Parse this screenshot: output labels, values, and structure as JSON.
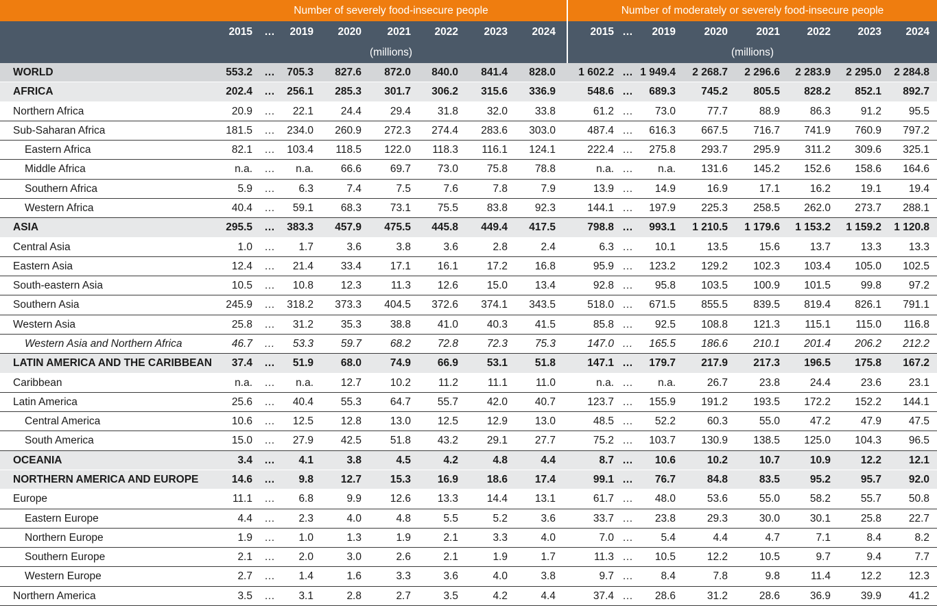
{
  "table": {
    "header": {
      "groups": [
        "Number of severely food-insecure people",
        "Number of moderately or severely food-insecure people"
      ],
      "years": [
        [
          "2015",
          "…",
          "2019",
          "2020",
          "2021",
          "2022",
          "2023",
          "2024"
        ],
        [
          "2015",
          "…",
          "2019",
          "2020",
          "2021",
          "2022",
          "2023",
          "2024"
        ]
      ],
      "units": [
        "(millions)",
        "(millions)"
      ]
    },
    "rows": [
      [
        "WORLD",
        "553.2",
        "…",
        "705.3",
        "827.6",
        "872.0",
        "840.0",
        "841.4",
        "828.0",
        "1 602.2",
        "…",
        "1 949.4",
        "2 268.7",
        "2 296.6",
        "2 283.9",
        "2 295.0",
        "2 284.8"
      ],
      [
        "AFRICA",
        "202.4",
        "…",
        "256.1",
        "285.3",
        "301.7",
        "306.2",
        "315.6",
        "336.9",
        "548.6",
        "…",
        "689.3",
        "745.2",
        "805.5",
        "828.2",
        "852.1",
        "892.7"
      ],
      [
        "Northern Africa",
        "20.9",
        "…",
        "22.1",
        "24.4",
        "29.4",
        "31.8",
        "32.0",
        "33.8",
        "61.2",
        "…",
        "73.0",
        "77.7",
        "88.9",
        "86.3",
        "91.2",
        "95.5"
      ],
      [
        "Sub-Saharan Africa",
        "181.5",
        "…",
        "234.0",
        "260.9",
        "272.3",
        "274.4",
        "283.6",
        "303.0",
        "487.4",
        "…",
        "616.3",
        "667.5",
        "716.7",
        "741.9",
        "760.9",
        "797.2"
      ],
      [
        "Eastern Africa",
        "82.1",
        "…",
        "103.4",
        "118.5",
        "122.0",
        "118.3",
        "116.1",
        "124.1",
        "222.4",
        "…",
        "275.8",
        "293.7",
        "295.9",
        "311.2",
        "309.6",
        "325.1"
      ],
      [
        "Middle Africa",
        "n.a.",
        "…",
        "n.a.",
        "66.6",
        "69.7",
        "73.0",
        "75.8",
        "78.8",
        "n.a.",
        "…",
        "n.a.",
        "131.6",
        "145.2",
        "152.6",
        "158.6",
        "164.6"
      ],
      [
        "Southern Africa",
        "5.9",
        "…",
        "6.3",
        "7.4",
        "7.5",
        "7.6",
        "7.8",
        "7.9",
        "13.9",
        "…",
        "14.9",
        "16.9",
        "17.1",
        "16.2",
        "19.1",
        "19.4"
      ],
      [
        "Western Africa",
        "40.4",
        "…",
        "59.1",
        "68.3",
        "73.1",
        "75.5",
        "83.8",
        "92.3",
        "144.1",
        "…",
        "197.9",
        "225.3",
        "258.5",
        "262.0",
        "273.7",
        "288.1"
      ],
      [
        "ASIA",
        "295.5",
        "…",
        "383.3",
        "457.9",
        "475.5",
        "445.8",
        "449.4",
        "417.5",
        "798.8",
        "…",
        "993.1",
        "1 210.5",
        "1 179.6",
        "1 153.2",
        "1 159.2",
        "1 120.8"
      ],
      [
        "Central Asia",
        "1.0",
        "…",
        "1.7",
        "3.6",
        "3.8",
        "3.6",
        "2.8",
        "2.4",
        "6.3",
        "…",
        "10.1",
        "13.5",
        "15.6",
        "13.7",
        "13.3",
        "13.3"
      ],
      [
        "Eastern Asia",
        "12.4",
        "…",
        "21.4",
        "33.4",
        "17.1",
        "16.1",
        "17.2",
        "16.8",
        "95.9",
        "…",
        "123.2",
        "129.2",
        "102.3",
        "103.4",
        "105.0",
        "102.5"
      ],
      [
        "South-eastern Asia",
        "10.5",
        "…",
        "10.8",
        "12.3",
        "11.3",
        "12.6",
        "15.0",
        "13.4",
        "92.8",
        "…",
        "95.8",
        "103.5",
        "100.9",
        "101.5",
        "99.8",
        "97.2"
      ],
      [
        "Southern Asia",
        "245.9",
        "…",
        "318.2",
        "373.3",
        "404.5",
        "372.6",
        "374.1",
        "343.5",
        "518.0",
        "…",
        "671.5",
        "855.5",
        "839.5",
        "819.4",
        "826.1",
        "791.1"
      ],
      [
        "Western Asia",
        "25.8",
        "…",
        "31.2",
        "35.3",
        "38.8",
        "41.0",
        "40.3",
        "41.5",
        "85.8",
        "…",
        "92.5",
        "108.8",
        "121.3",
        "115.1",
        "115.0",
        "116.8"
      ],
      [
        "Western Asia and Northern Africa",
        "46.7",
        "…",
        "53.3",
        "59.7",
        "68.2",
        "72.8",
        "72.3",
        "75.3",
        "147.0",
        "…",
        "165.5",
        "186.6",
        "210.1",
        "201.4",
        "206.2",
        "212.2"
      ],
      [
        "LATIN AMERICA AND THE CARIBBEAN",
        "37.4",
        "…",
        "51.9",
        "68.0",
        "74.9",
        "66.9",
        "53.1",
        "51.8",
        "147.1",
        "…",
        "179.7",
        "217.9",
        "217.3",
        "196.5",
        "175.8",
        "167.2"
      ],
      [
        "Caribbean",
        "n.a.",
        "…",
        "n.a.",
        "12.7",
        "10.2",
        "11.2",
        "11.1",
        "11.0",
        "n.a.",
        "…",
        "n.a.",
        "26.7",
        "23.8",
        "24.4",
        "23.6",
        "23.1"
      ],
      [
        "Latin America",
        "25.6",
        "…",
        "40.4",
        "55.3",
        "64.7",
        "55.7",
        "42.0",
        "40.7",
        "123.7",
        "…",
        "155.9",
        "191.2",
        "193.5",
        "172.2",
        "152.2",
        "144.1"
      ],
      [
        "Central America",
        "10.6",
        "…",
        "12.5",
        "12.8",
        "13.0",
        "12.5",
        "12.9",
        "13.0",
        "48.5",
        "…",
        "52.2",
        "60.3",
        "55.0",
        "47.2",
        "47.9",
        "47.5"
      ],
      [
        "South America",
        "15.0",
        "…",
        "27.9",
        "42.5",
        "51.8",
        "43.2",
        "29.1",
        "27.7",
        "75.2",
        "…",
        "103.7",
        "130.9",
        "138.5",
        "125.0",
        "104.3",
        "96.5"
      ],
      [
        "OCEANIA",
        "3.4",
        "…",
        "4.1",
        "3.8",
        "4.5",
        "4.2",
        "4.8",
        "4.4",
        "8.7",
        "…",
        "10.6",
        "10.2",
        "10.7",
        "10.9",
        "12.2",
        "12.1"
      ],
      [
        "NORTHERN AMERICA AND EUROPE",
        "14.6",
        "…",
        "9.8",
        "12.7",
        "15.3",
        "16.9",
        "18.6",
        "17.4",
        "99.1",
        "…",
        "76.7",
        "84.8",
        "83.5",
        "95.2",
        "95.7",
        "92.0"
      ],
      [
        "Europe",
        "11.1",
        "…",
        "6.8",
        "9.9",
        "12.6",
        "13.3",
        "14.4",
        "13.1",
        "61.7",
        "…",
        "48.0",
        "53.6",
        "55.0",
        "58.2",
        "55.7",
        "50.8"
      ],
      [
        "Eastern Europe",
        "4.4",
        "…",
        "2.3",
        "4.0",
        "4.8",
        "5.5",
        "5.2",
        "3.6",
        "33.7",
        "…",
        "23.8",
        "29.3",
        "30.0",
        "30.1",
        "25.8",
        "22.7"
      ],
      [
        "Northern Europe",
        "1.9",
        "…",
        "1.0",
        "1.3",
        "1.9",
        "2.1",
        "3.3",
        "4.0",
        "7.0",
        "…",
        "5.4",
        "4.4",
        "4.7",
        "7.1",
        "8.4",
        "8.2"
      ],
      [
        "Southern Europe",
        "2.1",
        "…",
        "2.0",
        "3.0",
        "2.6",
        "2.1",
        "1.9",
        "1.7",
        "11.3",
        "…",
        "10.5",
        "12.2",
        "10.5",
        "9.7",
        "9.4",
        "7.7"
      ],
      [
        "Western Europe",
        "2.7",
        "…",
        "1.4",
        "1.6",
        "3.3",
        "3.6",
        "4.0",
        "3.8",
        "9.7",
        "…",
        "8.4",
        "7.8",
        "9.8",
        "11.4",
        "12.2",
        "12.3"
      ],
      [
        "Northern America",
        "3.5",
        "…",
        "3.1",
        "2.8",
        "2.7",
        "3.5",
        "4.2",
        "4.4",
        "37.4",
        "…",
        "28.6",
        "31.2",
        "28.6",
        "36.9",
        "39.9",
        "41.2"
      ]
    ]
  }
}
